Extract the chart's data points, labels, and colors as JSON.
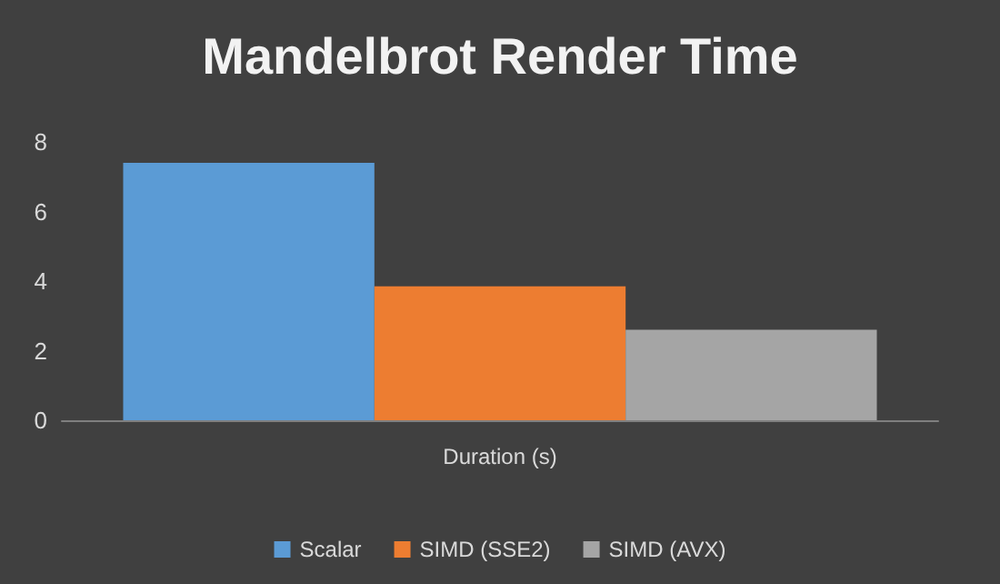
{
  "chart_data": {
    "type": "bar",
    "title": "Mandelbrot Render Time",
    "categories": [
      "Duration (s)"
    ],
    "series": [
      {
        "name": "Scalar",
        "color": "#5b9bd5",
        "values": [
          7.4
        ]
      },
      {
        "name": "SIMD (SSE2)",
        "color": "#ed7d31",
        "values": [
          3.85
        ]
      },
      {
        "name": "SIMD (AVX)",
        "color": "#a5a5a5",
        "values": [
          2.6
        ]
      }
    ],
    "ylim": [
      0,
      8
    ],
    "yticks": [
      0,
      2,
      4,
      6,
      8
    ],
    "grid": false,
    "legend": "bottom"
  }
}
